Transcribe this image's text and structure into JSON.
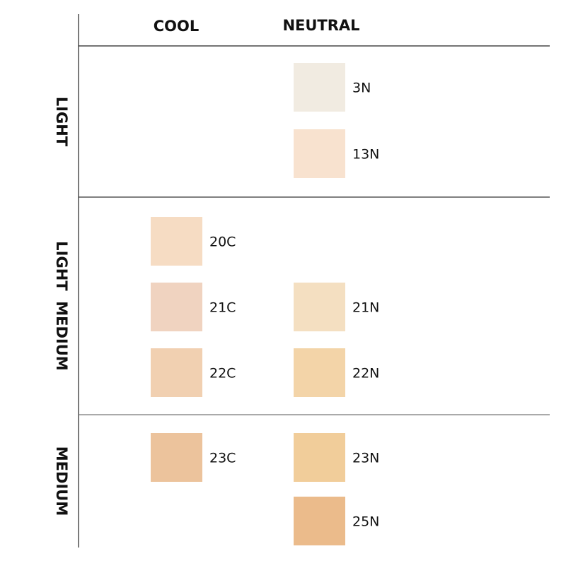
{
  "columns": [
    "COOL",
    "NEUTRAL"
  ],
  "rows": [
    {
      "label": "LIGHT",
      "cool": [],
      "neutral": [
        {
          "name": "3N",
          "color": "#f1ebe1"
        },
        {
          "name": "13N",
          "color": "#f8e2cf"
        }
      ]
    },
    {
      "label": "LIGHT  MEDIUM",
      "cool": [
        {
          "name": "20C",
          "color": "#f6dcc3"
        },
        {
          "name": "21C",
          "color": "#f0d3c0"
        },
        {
          "name": "22C",
          "color": "#f1d0b1"
        }
      ],
      "neutral": [
        null,
        {
          "name": "21N",
          "color": "#f4dfc1"
        },
        {
          "name": "22N",
          "color": "#f3d4a8"
        }
      ]
    },
    {
      "label": "MEDIUM",
      "cool": [
        {
          "name": "23C",
          "color": "#ecc39c"
        }
      ],
      "neutral": [
        {
          "name": "23N",
          "color": "#f1cd9a"
        },
        {
          "name": "25N",
          "color": "#ebbb8b"
        }
      ]
    }
  ]
}
